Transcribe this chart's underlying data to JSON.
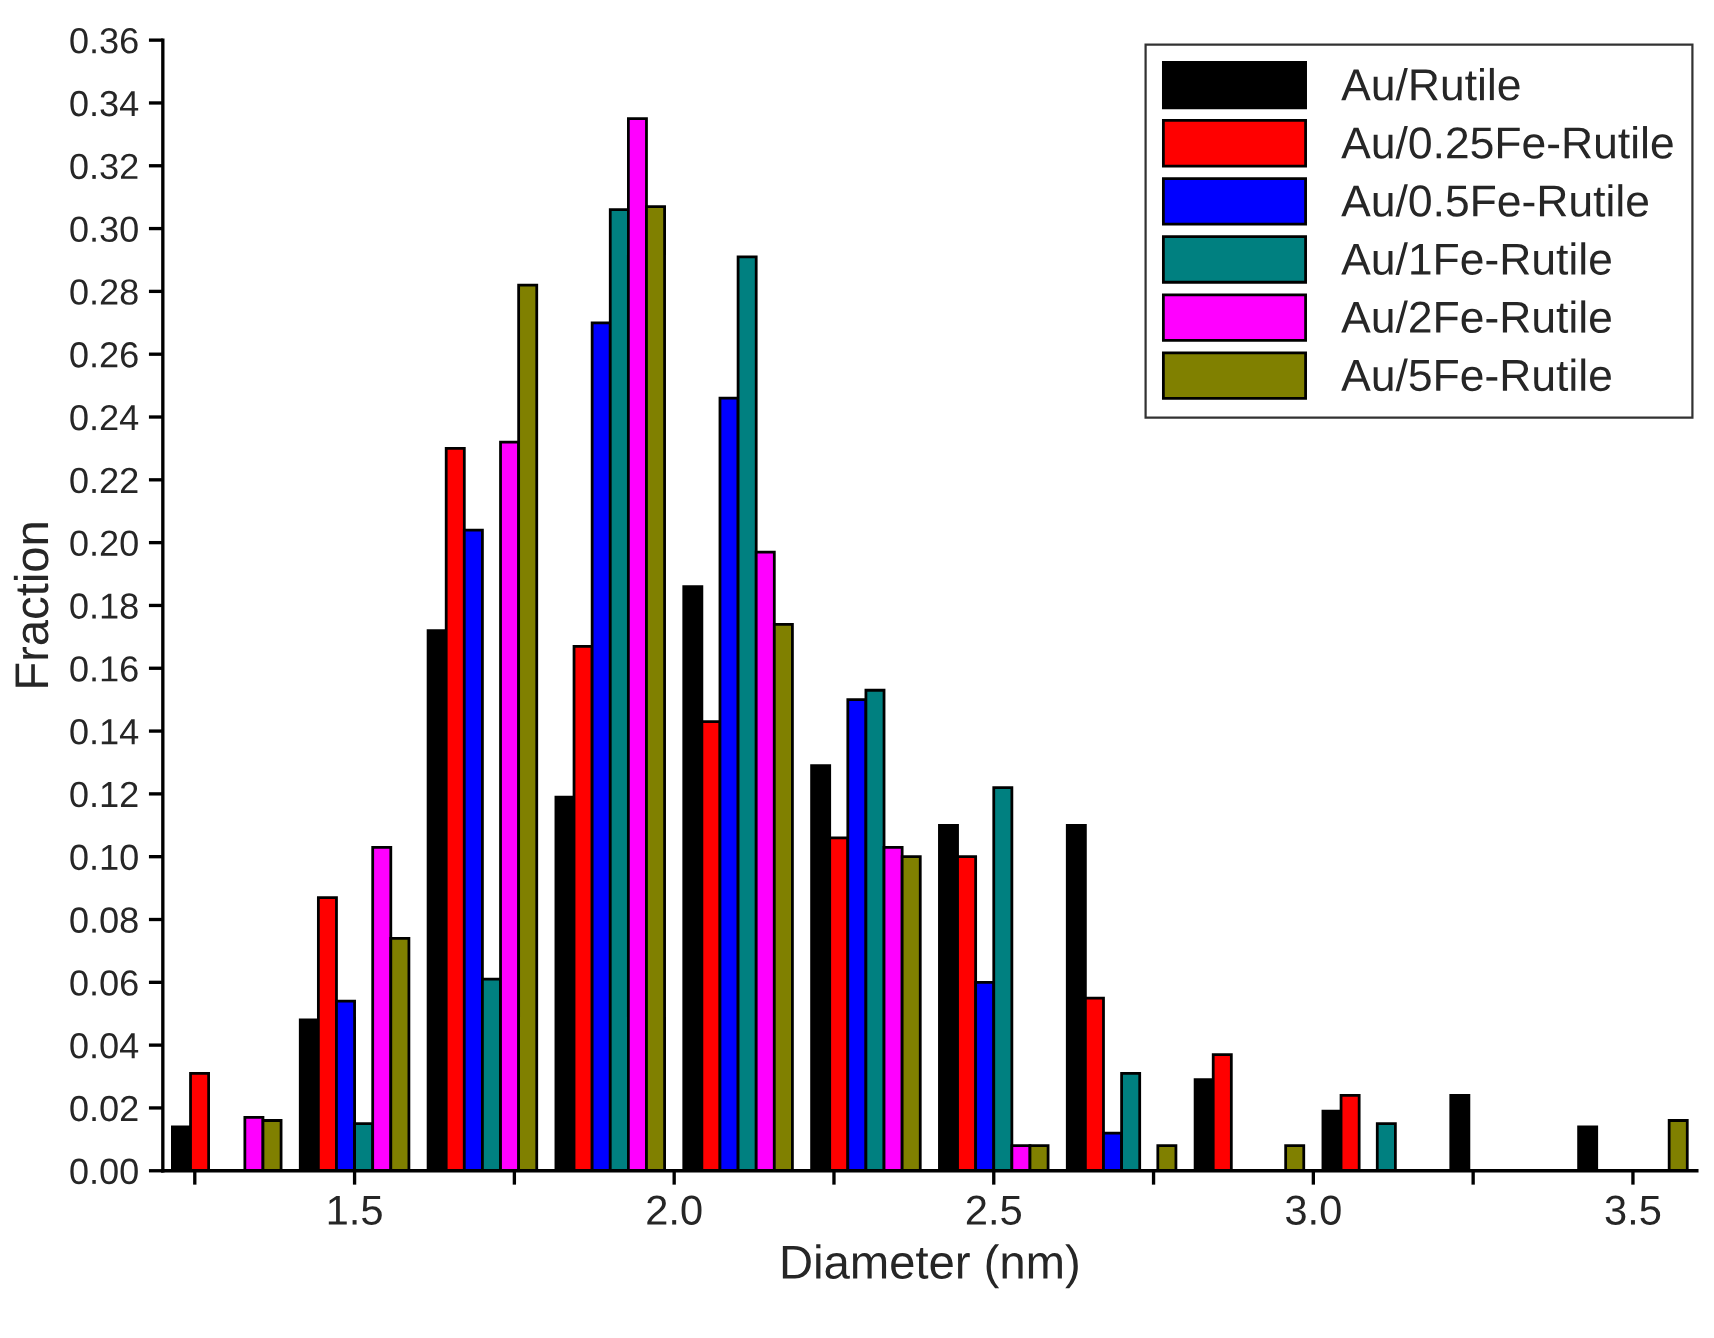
{
  "chart_data": {
    "type": "bar",
    "xlabel": "Diameter (nm)",
    "ylabel": "Fraction",
    "x": [
      1.3,
      1.5,
      1.7,
      1.9,
      2.1,
      2.3,
      2.5,
      2.7,
      2.9,
      3.1,
      3.3,
      3.5
    ],
    "series": [
      {
        "name": "Au/Rutile",
        "color": "#000000",
        "values": [
          0.014,
          0.048,
          0.172,
          0.119,
          0.186,
          0.129,
          0.11,
          0.11,
          0.029,
          0.019,
          0.024,
          0.014
        ]
      },
      {
        "name": "Au/0.25Fe-Rutile",
        "color": "#ff0000",
        "values": [
          0.031,
          0.087,
          0.23,
          0.167,
          0.143,
          0.106,
          0.1,
          0.055,
          0.037,
          0.024,
          null,
          null
        ]
      },
      {
        "name": "Au/0.5Fe-Rutile",
        "color": "#0000ff",
        "values": [
          null,
          0.054,
          0.204,
          0.27,
          0.246,
          0.15,
          0.06,
          0.012,
          null,
          null,
          null,
          null
        ]
      },
      {
        "name": "Au/1Fe-Rutile",
        "color": "#008080",
        "values": [
          null,
          0.015,
          0.061,
          0.306,
          0.291,
          0.153,
          0.122,
          0.031,
          null,
          0.015,
          null,
          null
        ]
      },
      {
        "name": "Au/2Fe-Rutile",
        "color": "#ff00ff",
        "values": [
          0.017,
          0.103,
          0.232,
          0.335,
          0.197,
          0.103,
          0.008,
          null,
          null,
          null,
          null,
          null
        ]
      },
      {
        "name": "Au/5Fe-Rutile",
        "color": "#808000",
        "values": [
          0.016,
          0.074,
          0.282,
          0.307,
          0.174,
          0.1,
          0.008,
          0.008,
          0.008,
          null,
          null,
          0.016
        ]
      }
    ],
    "xlim": [
      1.2,
      3.6
    ],
    "xticks": [
      {
        "value": 1.25,
        "label": null
      },
      {
        "value": 1.5,
        "label": "1.5"
      },
      {
        "value": 1.75,
        "label": null
      },
      {
        "value": 2.0,
        "label": "2.0"
      },
      {
        "value": 2.25,
        "label": null
      },
      {
        "value": 2.5,
        "label": "2.5"
      },
      {
        "value": 2.75,
        "label": null
      },
      {
        "value": 3.0,
        "label": "3.0"
      },
      {
        "value": 3.25,
        "label": null
      },
      {
        "value": 3.5,
        "label": "3.5"
      }
    ],
    "ylim": [
      0,
      0.36
    ],
    "yticks": [
      {
        "value": 0,
        "label": "0.00"
      },
      {
        "value": 0.02,
        "label": "0.02"
      },
      {
        "value": 0.04,
        "label": "0.04"
      },
      {
        "value": 0.06,
        "label": "0.06"
      },
      {
        "value": 0.08,
        "label": "0.08"
      },
      {
        "value": 0.1,
        "label": "0.10"
      },
      {
        "value": 0.12,
        "label": "0.12"
      },
      {
        "value": 0.14,
        "label": "0.14"
      },
      {
        "value": 0.16,
        "label": "0.16"
      },
      {
        "value": 0.18,
        "label": "0.18"
      },
      {
        "value": 0.2,
        "label": "0.20"
      },
      {
        "value": 0.22,
        "label": "0.22"
      },
      {
        "value": 0.24,
        "label": "0.24"
      },
      {
        "value": 0.26,
        "label": "0.26"
      },
      {
        "value": 0.28,
        "label": "0.28"
      },
      {
        "value": 0.3,
        "label": "0.30"
      },
      {
        "value": 0.32,
        "label": "0.32"
      },
      {
        "value": 0.34,
        "label": "0.34"
      },
      {
        "value": 0.36,
        "label": "0.36"
      }
    ],
    "grid": false,
    "legend": "top right"
  }
}
